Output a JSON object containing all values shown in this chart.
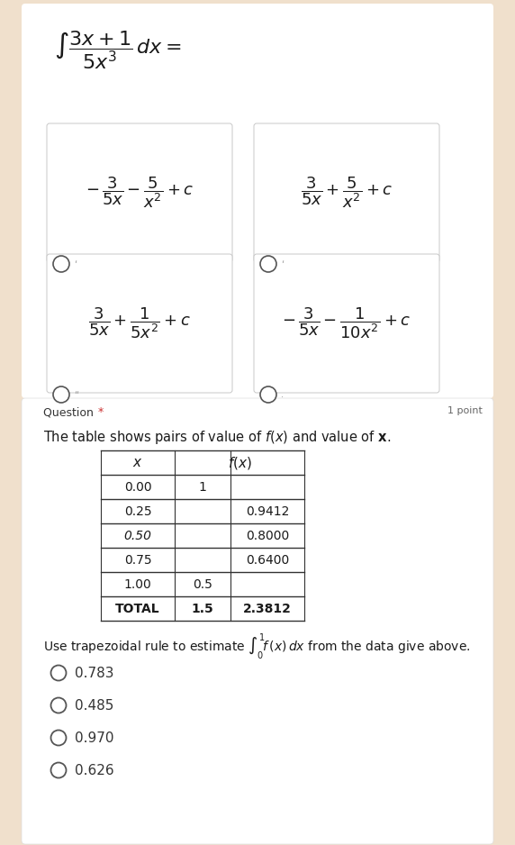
{
  "bg_color": "#f0e0cc",
  "panel_color": "#ffffff",
  "text_color": "#1a1a1a",
  "radio_color": "#555555",
  "border_color": "#cccccc",
  "red_star_color": "#cc3333",
  "gray_text": "#666666",
  "option_texts": [
    "$-\\,\\dfrac{3}{5x} - \\dfrac{5}{x^2} + c$",
    "$\\dfrac{3}{5x} + \\dfrac{5}{x^2} + c$",
    "$\\dfrac{3}{5x} + \\dfrac{1}{5x^2} + c$",
    "$-\\,\\dfrac{3}{5x} - \\dfrac{1}{10x^2} + c$"
  ],
  "answers": [
    "0.783",
    "0.485",
    "0.970",
    "0.626"
  ],
  "x_vals": [
    "0.00",
    "0.25",
    "0.50",
    "0.75",
    "1.00"
  ],
  "col2_vals": [
    "1",
    "",
    "",
    "",
    "0.5"
  ],
  "col3_vals": [
    "",
    "0.9412",
    "0.8000",
    "0.6400",
    ""
  ]
}
